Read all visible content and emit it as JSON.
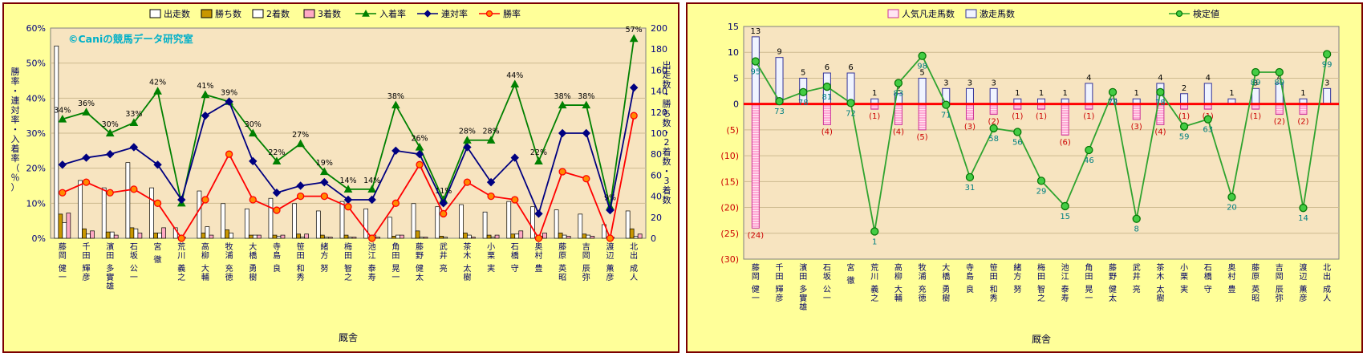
{
  "page": {
    "background": "#FFFFFF",
    "panel_background": "#FFFF99",
    "panel_border": "#7B0000",
    "plot_background": "#F7E4C0"
  },
  "categories": [
    "藤岡 健一",
    "千田 輝彦",
    "濱田 多實雄",
    "石坂 公一",
    "宮 徹",
    "荒川 義之",
    "高柳 大輔",
    "牧浦 充徳",
    "大橋 勇樹",
    "寺島 良",
    "笹田 和秀",
    "緒方 努",
    "梅田 智之",
    "池江 泰寿",
    "角田 晃一",
    "藤野 健太",
    "武井 亮",
    "茶木 太樹",
    "小栗 実",
    "石橋 守",
    "奥村 豊",
    "藤原 英昭",
    "吉岡 辰弥",
    "渡辺 薫彦",
    "北出 成人"
  ],
  "chart_data": [
    {
      "type": "bar",
      "panel": "left",
      "watermark": "©Caniの競馬データ研究室",
      "watermark_color": "#00B0C8",
      "xlabel": "厩舎",
      "ylabel_left": "勝率・連対率・入着率（％）",
      "ylabel_right": "出走数・勝ち数・2着数・3着数",
      "axis_left": {
        "min": 0,
        "max": 60,
        "step": 10,
        "format": "percent"
      },
      "axis_right": {
        "min": 0,
        "max": 200,
        "step": 20
      },
      "grid": true,
      "legend_position": "top",
      "series": [
        {
          "key": "starts",
          "name": "出走数",
          "kind": "bar",
          "axis": "right",
          "color": "#FFFFFF",
          "border": "#000000",
          "values": [
            183,
            55,
            48,
            72,
            48,
            10,
            45,
            33,
            28,
            38,
            33,
            26,
            35,
            28,
            20,
            33,
            30,
            32,
            25,
            35,
            30,
            27,
            23,
            13,
            26
          ]
        },
        {
          "key": "wins",
          "name": "勝ち数",
          "kind": "bar",
          "axis": "right",
          "color": "#C99700",
          "border": "#000000",
          "values": [
            23,
            9,
            6,
            10,
            5,
            0,
            5,
            8,
            3,
            3,
            4,
            3,
            3,
            0,
            2,
            7,
            2,
            5,
            3,
            4,
            0,
            5,
            4,
            0,
            9
          ]
        },
        {
          "key": "seconds",
          "name": "2着数",
          "kind": "bar",
          "axis": "right",
          "color": "#FFFFFF",
          "border": "#000000",
          "values": [
            15,
            4,
            6,
            9,
            5,
            1,
            11,
            5,
            3,
            2,
            1,
            1,
            1,
            3,
            3,
            1,
            1,
            3,
            1,
            4,
            2,
            3,
            3,
            1,
            2
          ]
        },
        {
          "key": "thirds",
          "name": "3着数",
          "kind": "bar",
          "axis": "right",
          "color": "#FFA9C4",
          "border": "#000000",
          "values": [
            24,
            7,
            3,
            5,
            10,
            0,
            3,
            0,
            3,
            3,
            4,
            1,
            1,
            1,
            3,
            1,
            0,
            1,
            3,
            7,
            5,
            2,
            2,
            0,
            4
          ]
        },
        {
          "key": "finish_rate",
          "name": "入着率",
          "kind": "line",
          "axis": "left",
          "color": "#008000",
          "marker": "triangle",
          "values": [
            34,
            36,
            30,
            33,
            42,
            10,
            41,
            39,
            30,
            22,
            27,
            19,
            14,
            14,
            38,
            26,
            11,
            28,
            28,
            44,
            22,
            38,
            38,
            9,
            57
          ],
          "point_labels": [
            "34%",
            "36%",
            "30%",
            "33%",
            "42%",
            "",
            "41%",
            "39%",
            "30%",
            "22%",
            "27%",
            "19%",
            "14%",
            "14%",
            "38%",
            "26%",
            "11%",
            "28%",
            "28%",
            "44%",
            "22%",
            "38%",
            "38%",
            "9%",
            "57%"
          ]
        },
        {
          "key": "quinella_rate",
          "name": "連対率",
          "kind": "line",
          "axis": "left",
          "color": "#000080",
          "marker": "diamond",
          "values": [
            21,
            23,
            24,
            26,
            21,
            11,
            35,
            39,
            22,
            13,
            15,
            16,
            11,
            11,
            25,
            24,
            10,
            26,
            16,
            23,
            7,
            30,
            30,
            8,
            43
          ]
        },
        {
          "key": "win_rate",
          "name": "勝率",
          "kind": "line",
          "axis": "left",
          "color": "#FF0000",
          "marker": "circle",
          "marker_fill": "#FF8A00",
          "values": [
            13,
            16,
            13,
            14,
            10,
            0,
            11,
            24,
            11,
            8,
            12,
            12,
            9,
            0,
            10,
            21,
            7,
            16,
            12,
            11,
            0,
            19,
            17,
            0,
            35
          ]
        }
      ]
    },
    {
      "type": "bar",
      "panel": "right",
      "xlabel": "厩舎",
      "axis": {
        "min": -30,
        "max": 15,
        "step": 5,
        "negative_format": "paren",
        "negative_color": "#CC0000"
      },
      "grid": true,
      "zero_line_color": "#FF0000",
      "legend_position": "top",
      "series": [
        {
          "key": "poor_run",
          "name": "人気凡走馬数",
          "kind": "bar",
          "direction": "down",
          "color": "#FFE6F2",
          "border": "#CC3399",
          "label_format": "paren",
          "label_color": "#CC0000",
          "values": [
            24,
            0,
            0,
            4,
            0,
            1,
            4,
            5,
            0,
            3,
            2,
            1,
            1,
            6,
            1,
            0,
            3,
            4,
            1,
            1,
            0,
            1,
            2,
            2,
            0
          ]
        },
        {
          "key": "strong_run",
          "name": "激走馬数",
          "kind": "bar",
          "direction": "up",
          "color": "#F0F4FF",
          "border": "#333399",
          "label_format": "plain",
          "label_color": "#000000",
          "values": [
            13,
            9,
            5,
            6,
            6,
            1,
            2,
            5,
            3,
            3,
            3,
            1,
            1,
            1,
            4,
            1,
            1,
            4,
            2,
            4,
            1,
            3,
            4,
            1,
            3
          ]
        },
        {
          "key": "test_value",
          "name": "検定値",
          "kind": "line",
          "color": "#2FA32F",
          "marker": "circle",
          "marker_fill": "#44CC44",
          "marker_stroke": "#067806",
          "label_color": "#008080",
          "hidden_axis": {
            "value_min": 0,
            "value_max": 100,
            "plot_min": -25,
            "plot_max": 10
          },
          "values": [
            95,
            73,
            78,
            81,
            72,
            1,
            83,
            98,
            71,
            31,
            58,
            56,
            29,
            15,
            46,
            78,
            8,
            78,
            59,
            63,
            20,
            89,
            89,
            14,
            99
          ]
        }
      ]
    }
  ]
}
